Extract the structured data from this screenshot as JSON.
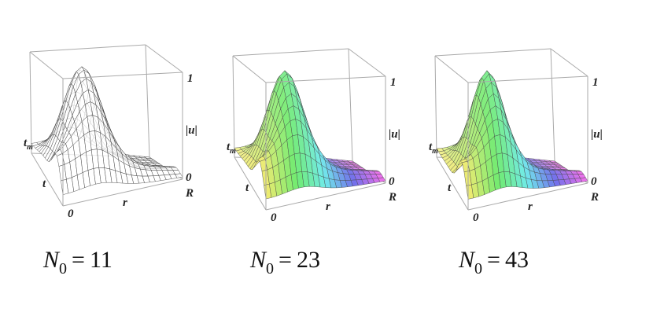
{
  "panels": [
    {
      "axes": {
        "z_top": "1",
        "z_label": "|u|",
        "z_bottom": "0",
        "r_end": "R",
        "r_label": "r",
        "origin": "0",
        "t_label": "t",
        "t_top": "t",
        "t_top_sub": "m"
      },
      "caption": {
        "symbol": "N",
        "subscript": "0",
        "relation": "=",
        "value": "11"
      }
    },
    {
      "axes": {
        "z_top": "1",
        "z_label": "|u|",
        "z_bottom": "0",
        "r_end": "R",
        "r_label": "r",
        "origin": "0",
        "t_label": "t",
        "t_top": "t",
        "t_top_sub": "m"
      },
      "caption": {
        "symbol": "N",
        "subscript": "0",
        "relation": "=",
        "value": "23"
      }
    },
    {
      "axes": {
        "z_top": "1",
        "z_label": "|u|",
        "z_bottom": "0",
        "r_end": "R",
        "r_label": "r",
        "origin": "0",
        "t_label": "t",
        "t_top": "t",
        "t_top_sub": "m"
      },
      "caption": {
        "symbol": "N",
        "subscript": "0",
        "relation": "=",
        "value": "43"
      }
    }
  ]
}
